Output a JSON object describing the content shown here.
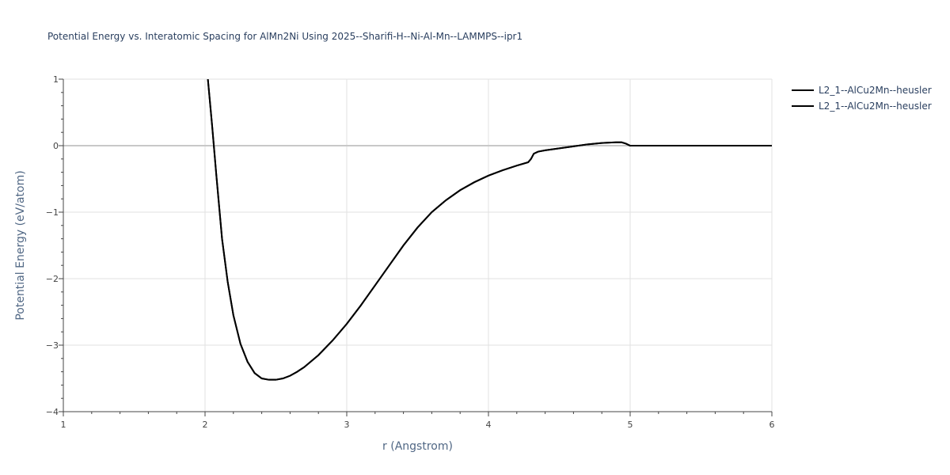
{
  "chart_data": {
    "type": "line",
    "title": "Potential Energy vs. Interatomic Spacing for AlMn2Ni Using 2025--Sharifi-H--Ni-Al-Mn--LAMMPS--ipr1",
    "xlabel": "r (Angstrom)",
    "ylabel": "Potential Energy (eV/atom)",
    "xlim": [
      1,
      6
    ],
    "ylim": [
      -4,
      1
    ],
    "xticks": [
      "1",
      "2",
      "3",
      "4",
      "5",
      "6"
    ],
    "yticks": [
      "1",
      "0",
      "−1",
      "−2",
      "−3",
      "−4"
    ],
    "grid": true,
    "legend_position": "top-right",
    "line_color": "#000000",
    "series": [
      {
        "name": "L2_1--AlCu2Mn--heusler",
        "x": [
          2.02,
          2.05,
          2.08,
          2.12,
          2.16,
          2.2,
          2.25,
          2.3,
          2.35,
          2.4,
          2.45,
          2.5,
          2.55,
          2.6,
          2.65,
          2.7,
          2.8,
          2.9,
          3.0,
          3.1,
          3.2,
          3.3,
          3.4,
          3.5,
          3.6,
          3.7,
          3.8,
          3.9,
          4.0,
          4.1,
          4.2,
          4.28,
          4.3,
          4.32,
          4.35,
          4.4,
          4.5,
          4.6,
          4.7,
          4.8,
          4.9,
          4.94,
          4.97,
          5.0,
          5.5,
          6.0
        ],
        "y": [
          1.0,
          0.3,
          -0.45,
          -1.4,
          -2.05,
          -2.55,
          -2.98,
          -3.25,
          -3.42,
          -3.5,
          -3.52,
          -3.52,
          -3.5,
          -3.46,
          -3.4,
          -3.33,
          -3.15,
          -2.93,
          -2.68,
          -2.4,
          -2.1,
          -1.8,
          -1.5,
          -1.23,
          -1.0,
          -0.82,
          -0.67,
          -0.55,
          -0.45,
          -0.37,
          -0.3,
          -0.25,
          -0.2,
          -0.12,
          -0.09,
          -0.07,
          -0.04,
          -0.01,
          0.02,
          0.04,
          0.05,
          0.05,
          0.03,
          0.0,
          0.0,
          0.0
        ]
      },
      {
        "name": "L2_1--AlCu2Mn--heusler",
        "x": [
          2.02,
          2.05,
          2.08,
          2.12,
          2.16,
          2.2,
          2.25,
          2.3,
          2.35,
          2.4,
          2.45,
          2.5,
          2.55,
          2.6,
          2.65,
          2.7,
          2.8,
          2.9,
          3.0,
          3.1,
          3.2,
          3.3,
          3.4,
          3.5,
          3.6,
          3.7,
          3.8,
          3.9,
          4.0,
          4.1,
          4.2,
          4.28,
          4.3,
          4.32,
          4.35,
          4.4,
          4.5,
          4.6,
          4.7,
          4.8,
          4.9,
          4.94,
          4.97,
          5.0,
          5.5,
          6.0
        ],
        "y": [
          1.0,
          0.3,
          -0.45,
          -1.4,
          -2.05,
          -2.55,
          -2.98,
          -3.25,
          -3.42,
          -3.5,
          -3.52,
          -3.52,
          -3.5,
          -3.46,
          -3.4,
          -3.33,
          -3.15,
          -2.93,
          -2.68,
          -2.4,
          -2.1,
          -1.8,
          -1.5,
          -1.23,
          -1.0,
          -0.82,
          -0.67,
          -0.55,
          -0.45,
          -0.37,
          -0.3,
          -0.25,
          -0.2,
          -0.12,
          -0.09,
          -0.07,
          -0.04,
          -0.01,
          0.02,
          0.04,
          0.05,
          0.05,
          0.03,
          0.0,
          0.0,
          0.0
        ]
      }
    ]
  }
}
